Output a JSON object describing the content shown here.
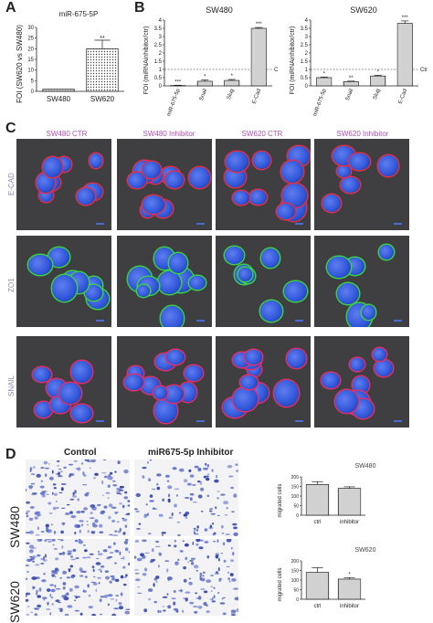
{
  "panels": {
    "A": {
      "letter": "A",
      "chart_data": {
        "type": "bar",
        "title": "miR-675-5P",
        "ylabel": "FOI (SW620 vs SW480)",
        "categories": [
          "SW480",
          "SW620"
        ],
        "values": [
          1,
          20
        ],
        "errors": [
          0,
          4
        ],
        "ylim": [
          0,
          30
        ],
        "yticks": [
          0,
          5,
          10,
          15,
          20,
          25,
          30
        ],
        "significance": "**"
      }
    },
    "B": {
      "letter": "B",
      "charts": [
        {
          "type": "bar",
          "title": "SW480",
          "ylabel": "FOI (miRNAinhibitor/ctr)",
          "categories": [
            "miR-675-5p",
            "Snail",
            "Slug",
            "E-Cad"
          ],
          "values": [
            0.02,
            0.28,
            0.33,
            3.5
          ],
          "errors": [
            0.02,
            0.08,
            0.06,
            0.05
          ],
          "significance": [
            "***",
            "*",
            "*",
            "***"
          ],
          "ylim": [
            0,
            4
          ],
          "yticks": [
            0,
            0.5,
            1,
            1.5,
            2,
            2.5,
            3,
            3.5,
            4
          ],
          "control_line": 1,
          "control_label": "C"
        },
        {
          "type": "bar",
          "title": "SW620",
          "ylabel": "FOI (miRNAinhibitor/ctr)",
          "categories": [
            "miR-675-5p",
            "Snail",
            "Slug",
            "E-Cad"
          ],
          "values": [
            0.5,
            0.26,
            0.6,
            3.8
          ],
          "errors": [
            0.04,
            0.03,
            0.05,
            0.15
          ],
          "significance": [
            "*",
            "**",
            "*",
            "***"
          ],
          "ylim": [
            0,
            4
          ],
          "yticks": [
            0,
            0.5,
            1,
            1.5,
            2,
            2.5,
            3,
            3.5,
            4
          ],
          "control_line": 1,
          "control_label": "Ctr"
        }
      ]
    },
    "C": {
      "letter": "C",
      "columns": [
        "SW480 CTR",
        "SW480 Inhibitor",
        "SW620 CTR",
        "SW620 Inhibitor"
      ],
      "rows": [
        "E-CAD",
        "ZO1",
        "SNAIL"
      ],
      "colors": {
        "nuclei": "#2f55d8",
        "ecad": "#e0304a",
        "zo1": "#39d04a",
        "snail": "#e0306a"
      }
    },
    "D": {
      "letter": "D",
      "columns": [
        "Control",
        "miR675-5p Inhibitor"
      ],
      "rows": [
        "SW480",
        "SW620"
      ],
      "charts": [
        {
          "type": "bar",
          "title": "SW480",
          "ylabel": "migrated cells",
          "categories": [
            "ctrl",
            "inhibitor"
          ],
          "values": [
            160,
            140
          ],
          "errors": [
            15,
            8
          ],
          "ylim": [
            0,
            200
          ],
          "yticks": [
            0,
            50,
            100,
            150,
            200
          ],
          "significance": [
            "",
            ""
          ]
        },
        {
          "type": "bar",
          "title": "SW620",
          "ylabel": "migrated cells",
          "categories": [
            "ctrl",
            "inhibitor"
          ],
          "values": [
            140,
            105
          ],
          "errors": [
            25,
            8
          ],
          "ylim": [
            0,
            200
          ],
          "yticks": [
            0,
            50,
            100,
            150,
            200
          ],
          "significance": [
            "",
            "*"
          ]
        }
      ]
    }
  }
}
